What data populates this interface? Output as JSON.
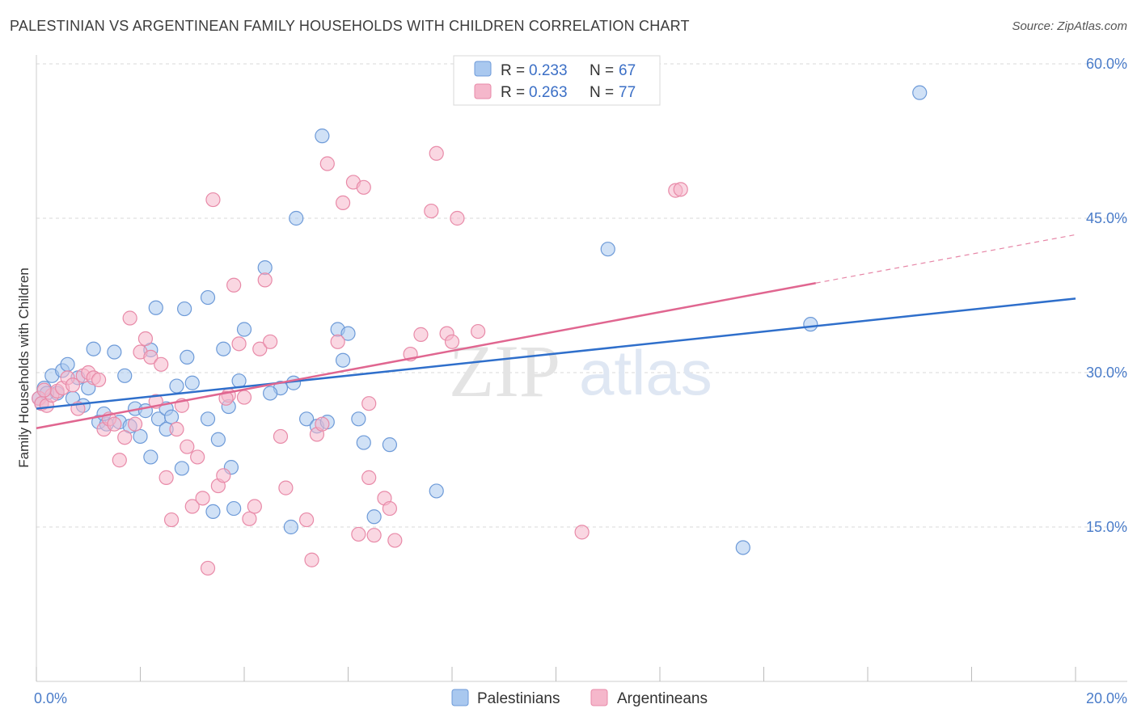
{
  "title": "PALESTINIAN VS ARGENTINEAN FAMILY HOUSEHOLDS WITH CHILDREN CORRELATION CHART",
  "source": "Source: ZipAtlas.com",
  "watermark": {
    "zip": "ZIP",
    "atlas": "atlas"
  },
  "colors": {
    "palestinians_fill": "#a9c8ef",
    "palestinians_stroke": "#6d9ad8",
    "palestinians_line": "#2f6fcb",
    "argentineans_fill": "#f5b7cb",
    "argentineans_stroke": "#e88aa8",
    "argentineans_line": "#e06690",
    "grid": "#d8d8d8",
    "tick_label": "#4a7cc9"
  },
  "legend": {
    "rows": [
      {
        "r_label": "R =",
        "r_value": "0.233",
        "n_label": "N =",
        "n_value": "67"
      },
      {
        "r_label": "R =",
        "r_value": "0.263",
        "n_label": "N =",
        "n_value": "77"
      }
    ]
  },
  "bottom_legend": [
    "Palestinians",
    "Argentineans"
  ],
  "chart_data": {
    "type": "scatter",
    "title": "PALESTINIAN VS ARGENTINEAN FAMILY HOUSEHOLDS WITH CHILDREN CORRELATION CHART",
    "xlabel": "",
    "ylabel": "Family Households with Children",
    "xlim": [
      0,
      20
    ],
    "ylim": [
      0,
      60
    ],
    "x_tick_labels": [
      "0.0%",
      "20.0%"
    ],
    "y_ticks": [
      15,
      30,
      45,
      60
    ],
    "y_tick_labels": [
      "15.0%",
      "30.0%",
      "45.0%",
      "60.0%"
    ],
    "grid": true,
    "legend_position": "top-center",
    "series": [
      {
        "name": "Palestinians",
        "R": 0.233,
        "N": 67,
        "trend": {
          "x": [
            0,
            20
          ],
          "y": [
            26.5,
            37.2
          ],
          "dashed_from": null
        },
        "points": [
          [
            0.1,
            27.0
          ],
          [
            0.15,
            28.5
          ],
          [
            0.3,
            29.7
          ],
          [
            0.4,
            28.0
          ],
          [
            0.5,
            30.2
          ],
          [
            0.6,
            30.8
          ],
          [
            0.7,
            27.5
          ],
          [
            0.9,
            26.8
          ],
          [
            1.0,
            28.5
          ],
          [
            1.1,
            32.3
          ],
          [
            1.2,
            25.2
          ],
          [
            1.35,
            25.0
          ],
          [
            1.5,
            32.0
          ],
          [
            1.6,
            25.2
          ],
          [
            1.7,
            29.7
          ],
          [
            1.8,
            24.8
          ],
          [
            1.9,
            26.5
          ],
          [
            2.0,
            23.8
          ],
          [
            2.1,
            26.3
          ],
          [
            2.2,
            32.2
          ],
          [
            2.2,
            21.8
          ],
          [
            2.3,
            36.3
          ],
          [
            2.35,
            25.5
          ],
          [
            2.5,
            24.5
          ],
          [
            2.5,
            26.5
          ],
          [
            2.6,
            25.7
          ],
          [
            2.7,
            28.7
          ],
          [
            2.8,
            20.7
          ],
          [
            2.85,
            36.2
          ],
          [
            2.9,
            31.5
          ],
          [
            3.0,
            29.0
          ],
          [
            3.3,
            25.5
          ],
          [
            3.3,
            37.3
          ],
          [
            3.4,
            16.5
          ],
          [
            3.5,
            23.5
          ],
          [
            3.6,
            32.3
          ],
          [
            3.7,
            26.7
          ],
          [
            3.75,
            20.8
          ],
          [
            3.8,
            16.8
          ],
          [
            3.9,
            29.2
          ],
          [
            4.0,
            34.2
          ],
          [
            4.4,
            40.2
          ],
          [
            4.7,
            28.5
          ],
          [
            4.9,
            15.0
          ],
          [
            4.95,
            29.0
          ],
          [
            5.0,
            45.0
          ],
          [
            5.2,
            25.5
          ],
          [
            5.4,
            24.8
          ],
          [
            5.5,
            53.0
          ],
          [
            5.6,
            25.2
          ],
          [
            5.8,
            34.2
          ],
          [
            5.9,
            31.2
          ],
          [
            6.0,
            33.8
          ],
          [
            6.2,
            25.5
          ],
          [
            6.3,
            23.2
          ],
          [
            6.5,
            16.0
          ],
          [
            6.8,
            23.0
          ],
          [
            7.7,
            18.5
          ],
          [
            11.0,
            42.0
          ],
          [
            13.6,
            13.0
          ],
          [
            14.9,
            34.7
          ],
          [
            17.0,
            57.2
          ],
          [
            0.05,
            27.5
          ],
          [
            0.2,
            28.0
          ],
          [
            0.8,
            29.5
          ],
          [
            1.3,
            26.0
          ],
          [
            4.5,
            28.0
          ]
        ]
      },
      {
        "name": "Argentineans",
        "R": 0.263,
        "N": 77,
        "trend": {
          "x": [
            0,
            20
          ],
          "y": [
            24.6,
            43.4
          ],
          "dashed_from": 15.0
        },
        "points": [
          [
            0.05,
            27.5
          ],
          [
            0.1,
            27.0
          ],
          [
            0.2,
            26.8
          ],
          [
            0.3,
            27.8
          ],
          [
            0.4,
            28.2
          ],
          [
            0.5,
            28.5
          ],
          [
            0.6,
            29.5
          ],
          [
            0.7,
            28.8
          ],
          [
            0.8,
            26.5
          ],
          [
            0.9,
            29.7
          ],
          [
            1.0,
            30.0
          ],
          [
            1.1,
            29.5
          ],
          [
            1.2,
            29.3
          ],
          [
            1.3,
            24.5
          ],
          [
            1.4,
            25.5
          ],
          [
            1.6,
            21.5
          ],
          [
            1.7,
            23.7
          ],
          [
            1.8,
            35.3
          ],
          [
            1.9,
            25.0
          ],
          [
            2.0,
            32.0
          ],
          [
            2.1,
            33.3
          ],
          [
            2.2,
            31.5
          ],
          [
            2.3,
            27.2
          ],
          [
            2.4,
            30.8
          ],
          [
            2.5,
            19.8
          ],
          [
            2.6,
            15.7
          ],
          [
            2.7,
            24.5
          ],
          [
            2.8,
            26.8
          ],
          [
            2.9,
            22.8
          ],
          [
            3.0,
            17.0
          ],
          [
            3.1,
            21.8
          ],
          [
            3.2,
            17.8
          ],
          [
            3.3,
            11.0
          ],
          [
            3.4,
            46.8
          ],
          [
            3.5,
            19.0
          ],
          [
            3.6,
            20.0
          ],
          [
            3.7,
            27.8
          ],
          [
            3.8,
            38.5
          ],
          [
            3.9,
            32.8
          ],
          [
            4.0,
            27.6
          ],
          [
            4.1,
            15.8
          ],
          [
            4.2,
            17.0
          ],
          [
            4.3,
            32.3
          ],
          [
            4.4,
            39.0
          ],
          [
            4.5,
            33.0
          ],
          [
            4.7,
            23.8
          ],
          [
            4.8,
            18.8
          ],
          [
            5.2,
            15.7
          ],
          [
            5.3,
            11.8
          ],
          [
            5.4,
            24.0
          ],
          [
            5.5,
            25.0
          ],
          [
            5.6,
            50.3
          ],
          [
            5.8,
            33.0
          ],
          [
            5.9,
            46.5
          ],
          [
            6.1,
            48.5
          ],
          [
            6.2,
            14.3
          ],
          [
            6.3,
            48.0
          ],
          [
            6.4,
            27.0
          ],
          [
            6.4,
            19.8
          ],
          [
            6.5,
            14.2
          ],
          [
            6.7,
            17.8
          ],
          [
            6.8,
            16.8
          ],
          [
            6.9,
            13.7
          ],
          [
            7.2,
            31.8
          ],
          [
            7.4,
            33.7
          ],
          [
            7.6,
            45.7
          ],
          [
            7.7,
            51.3
          ],
          [
            7.9,
            33.8
          ],
          [
            8.0,
            33.0
          ],
          [
            8.1,
            45.0
          ],
          [
            8.5,
            34.0
          ],
          [
            10.5,
            14.5
          ],
          [
            12.3,
            47.7
          ],
          [
            12.4,
            47.8
          ],
          [
            0.15,
            28.3
          ],
          [
            1.5,
            25.0
          ],
          [
            3.65,
            27.5
          ]
        ]
      }
    ]
  }
}
